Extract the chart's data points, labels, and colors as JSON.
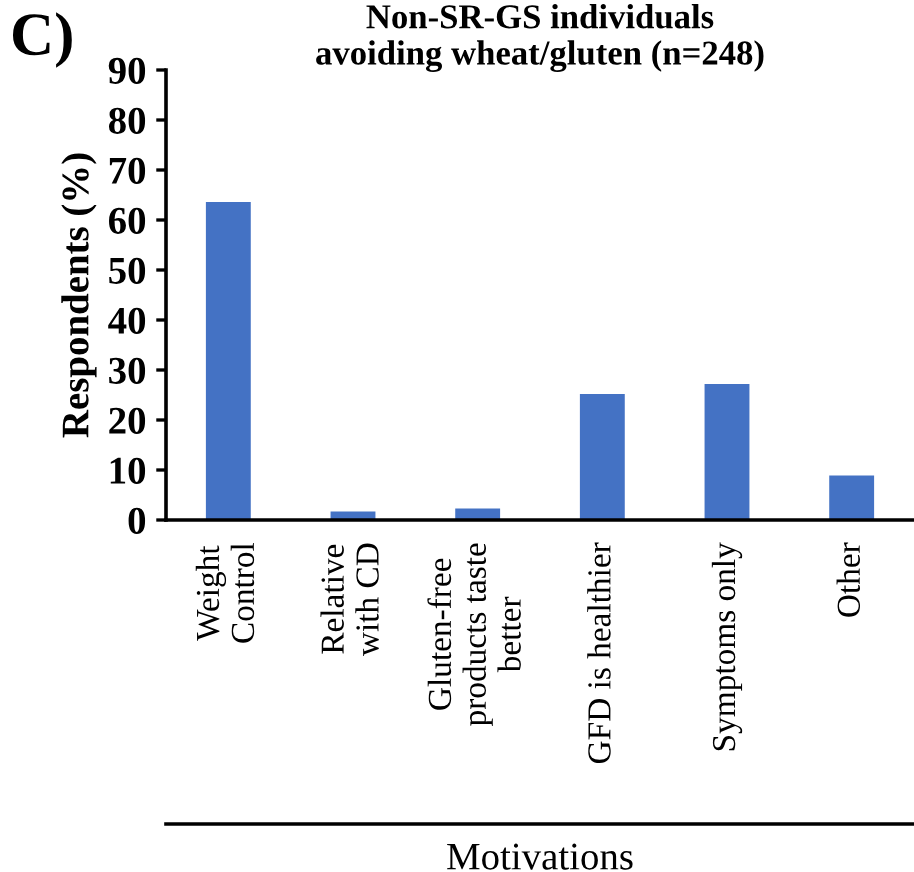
{
  "chart_data": {
    "type": "bar",
    "title": "Non-SR-GS individuals\navoiding wheat/gluten (n=248)",
    "xlabel": "Motivations",
    "ylabel": "Respondents (%)",
    "annotations": [
      "C)"
    ],
    "categories": [
      "Weight\nControl",
      "Relative\nwith CD",
      "Gluten-free\nproducts taste\nbetter",
      "GFD is healthier",
      "Symptoms only",
      "Other"
    ],
    "values": [
      63.6,
      1.7,
      2.3,
      25.2,
      27.2,
      8.9
    ],
    "color": "#4472c4",
    "ylim": [
      0,
      90
    ],
    "yticks": [
      0,
      10,
      20,
      30,
      40,
      50,
      60,
      70,
      80,
      90
    ],
    "grid": false
  }
}
